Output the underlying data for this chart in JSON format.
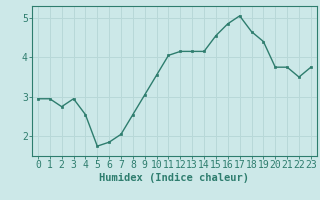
{
  "x": [
    0,
    1,
    2,
    3,
    4,
    5,
    6,
    7,
    8,
    9,
    10,
    11,
    12,
    13,
    14,
    15,
    16,
    17,
    18,
    19,
    20,
    21,
    22,
    23
  ],
  "y": [
    2.95,
    2.95,
    2.75,
    2.95,
    2.55,
    1.75,
    1.85,
    2.05,
    2.55,
    3.05,
    3.55,
    4.05,
    4.15,
    4.15,
    4.15,
    4.55,
    4.85,
    5.05,
    4.65,
    4.4,
    3.75,
    3.75,
    3.5,
    3.75
  ],
  "line_color": "#2e7d6e",
  "marker": "s",
  "marker_size": 2.0,
  "bg_color": "#cce8e8",
  "grid_color": "#b8d8d8",
  "xlabel": "Humidex (Indice chaleur)",
  "xlim": [
    -0.5,
    23.5
  ],
  "ylim": [
    1.5,
    5.3
  ],
  "yticks": [
    2,
    3,
    4,
    5
  ],
  "xticks": [
    0,
    1,
    2,
    3,
    4,
    5,
    6,
    7,
    8,
    9,
    10,
    11,
    12,
    13,
    14,
    15,
    16,
    17,
    18,
    19,
    20,
    21,
    22,
    23
  ],
  "xlabel_fontsize": 7.5,
  "tick_fontsize": 7,
  "line_width": 1.0
}
